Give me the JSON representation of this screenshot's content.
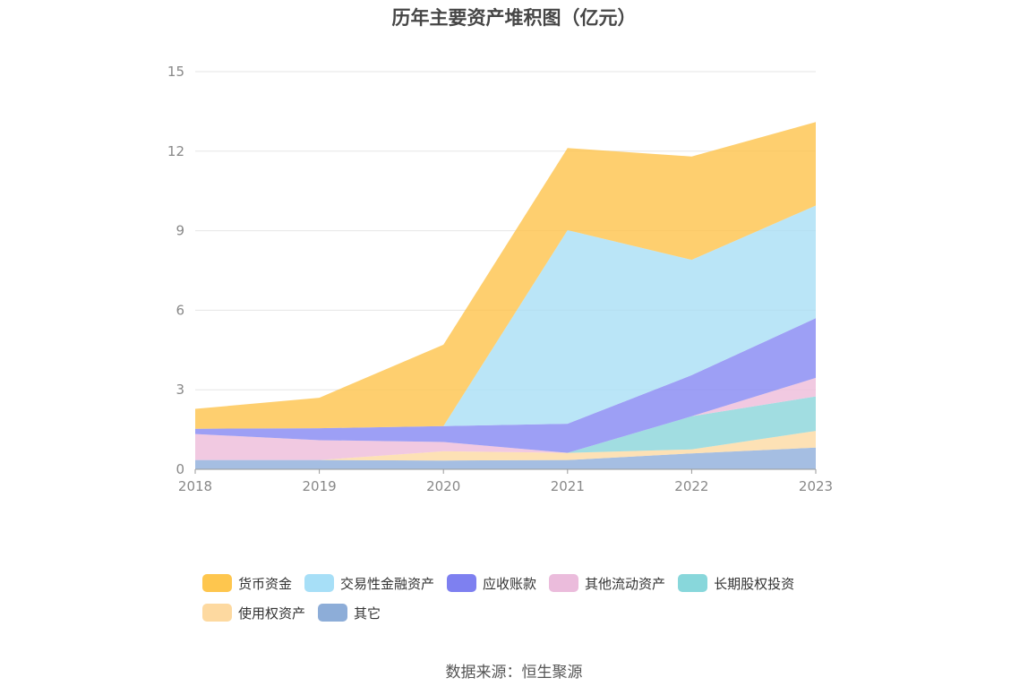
{
  "chart_data": {
    "type": "area",
    "stacked": true,
    "title": "历年主要资产堆积图（亿元）",
    "x": [
      "2018",
      "2019",
      "2020",
      "2021",
      "2022",
      "2023"
    ],
    "ylim": [
      0,
      15
    ],
    "yticks": [
      "0",
      "3",
      "6",
      "9",
      "12",
      "15"
    ],
    "grid": true,
    "legend_position": "bottom",
    "series": [
      {
        "name": "其它",
        "color": "#8eaedb",
        "values": [
          0.35,
          0.35,
          0.33,
          0.35,
          0.6,
          0.82
        ]
      },
      {
        "name": "使用权资产",
        "color": "#fcd9a3",
        "values": [
          0.0,
          0.0,
          0.35,
          0.27,
          0.15,
          0.63
        ]
      },
      {
        "name": "长期股权投资",
        "color": "#8ad5d9",
        "values": [
          0.0,
          0.0,
          0.0,
          0.0,
          1.25,
          1.3
        ]
      },
      {
        "name": "其他流动资产",
        "color": "#edbcda",
        "values": [
          0.98,
          0.75,
          0.35,
          0.0,
          0.0,
          0.7
        ]
      },
      {
        "name": "应收账款",
        "color": "#8487f2",
        "values": [
          0.2,
          0.45,
          0.6,
          1.1,
          1.55,
          2.25
        ]
      },
      {
        "name": "交易性金融资产",
        "color": "#a9dff5",
        "values": [
          0.0,
          0.0,
          0.0,
          7.3,
          4.35,
          4.25
        ]
      },
      {
        "name": "货币资金",
        "color": "#fec34b",
        "values": [
          0.75,
          1.15,
          3.07,
          3.1,
          3.9,
          3.15
        ]
      }
    ]
  },
  "legend": {
    "items": [
      {
        "label": "货币资金",
        "color": "#fec64e"
      },
      {
        "label": "交易性金融资产",
        "color": "#a7dff7"
      },
      {
        "label": "应收账款",
        "color": "#7e80f0"
      },
      {
        "label": "其他流动资产",
        "color": "#ebbcdc"
      },
      {
        "label": "长期股权投资",
        "color": "#88d7db"
      },
      {
        "label": "使用权资产",
        "color": "#fdd9a0"
      },
      {
        "label": "其它",
        "color": "#8dadd8"
      }
    ]
  },
  "source": "数据来源：恒生聚源"
}
